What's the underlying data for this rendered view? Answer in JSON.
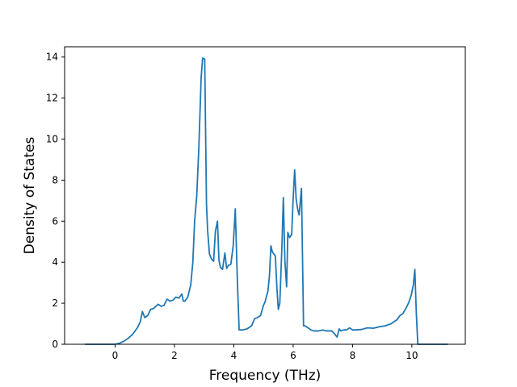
{
  "chart_data": {
    "type": "line",
    "title": "",
    "xlabel": "Frequency (THz)",
    "ylabel": "Density of States",
    "xlim": [
      -1.7,
      11.8
    ],
    "ylim": [
      0,
      14.5
    ],
    "x_ticks": [
      0,
      2,
      4,
      6,
      8,
      10
    ],
    "x_tick_labels": [
      "0",
      "2",
      "4",
      "6",
      "8",
      "10"
    ],
    "y_ticks": [
      0,
      2,
      4,
      6,
      8,
      10,
      12,
      14
    ],
    "y_tick_labels": [
      "0",
      "2",
      "4",
      "6",
      "8",
      "10",
      "12",
      "14"
    ],
    "grid": false,
    "legend": "none",
    "series": [
      {
        "color": "#1f77b4",
        "x": [
          -1.0,
          -0.5,
          0.0,
          0.15,
          0.3,
          0.45,
          0.6,
          0.75,
          0.85,
          0.92,
          1.0,
          1.1,
          1.2,
          1.3,
          1.45,
          1.55,
          1.65,
          1.75,
          1.85,
          1.95,
          2.05,
          2.15,
          2.25,
          2.3,
          2.35,
          2.45,
          2.55,
          2.62,
          2.68,
          2.75,
          2.82,
          2.9,
          2.95,
          3.02,
          3.08,
          3.12,
          3.18,
          3.25,
          3.32,
          3.38,
          3.45,
          3.5,
          3.55,
          3.62,
          3.7,
          3.76,
          3.82,
          3.9,
          3.98,
          4.05,
          4.12,
          4.18,
          4.22,
          4.3,
          4.45,
          4.6,
          4.7,
          4.8,
          4.9,
          5.0,
          5.05,
          5.15,
          5.2,
          5.25,
          5.3,
          5.4,
          5.45,
          5.5,
          5.55,
          5.62,
          5.67,
          5.72,
          5.78,
          5.82,
          5.88,
          5.95,
          6.0,
          6.05,
          6.1,
          6.15,
          6.2,
          6.28,
          6.35,
          6.4,
          6.5,
          6.6,
          6.7,
          6.85,
          7.0,
          7.1,
          7.2,
          7.3,
          7.4,
          7.48,
          7.55,
          7.6,
          7.7,
          7.8,
          7.9,
          8.0,
          8.1,
          8.3,
          8.5,
          8.7,
          8.9,
          9.1,
          9.3,
          9.5,
          9.6,
          9.7,
          9.8,
          9.9,
          9.98,
          10.05,
          10.1,
          10.15,
          10.2,
          10.6,
          11.2
        ],
        "y": [
          0.0,
          0.0,
          0.0,
          0.05,
          0.15,
          0.3,
          0.5,
          0.8,
          1.1,
          1.6,
          1.3,
          1.4,
          1.7,
          1.75,
          1.95,
          1.85,
          1.9,
          2.2,
          2.1,
          2.15,
          2.3,
          2.25,
          2.45,
          2.1,
          2.1,
          2.3,
          2.9,
          4.0,
          6.0,
          7.2,
          9.5,
          13.0,
          13.95,
          13.9,
          6.8,
          5.5,
          4.4,
          4.15,
          4.05,
          5.5,
          6.0,
          4.1,
          3.75,
          3.65,
          4.45,
          3.7,
          3.85,
          3.9,
          4.8,
          6.6,
          3.1,
          0.7,
          0.7,
          0.7,
          0.75,
          0.9,
          1.25,
          1.3,
          1.4,
          1.9,
          2.05,
          2.6,
          3.3,
          4.8,
          4.5,
          4.3,
          2.8,
          1.7,
          2.0,
          4.7,
          7.15,
          4.1,
          2.8,
          5.45,
          5.2,
          5.35,
          7.1,
          8.5,
          7.1,
          6.6,
          6.3,
          7.6,
          0.9,
          0.9,
          0.8,
          0.7,
          0.65,
          0.65,
          0.7,
          0.65,
          0.65,
          0.65,
          0.5,
          0.35,
          0.75,
          0.65,
          0.7,
          0.7,
          0.8,
          0.7,
          0.7,
          0.72,
          0.8,
          0.78,
          0.85,
          0.9,
          1.0,
          1.2,
          1.4,
          1.5,
          1.75,
          2.05,
          2.4,
          2.9,
          3.65,
          1.5,
          0.0,
          0.0,
          0.0
        ]
      }
    ]
  }
}
